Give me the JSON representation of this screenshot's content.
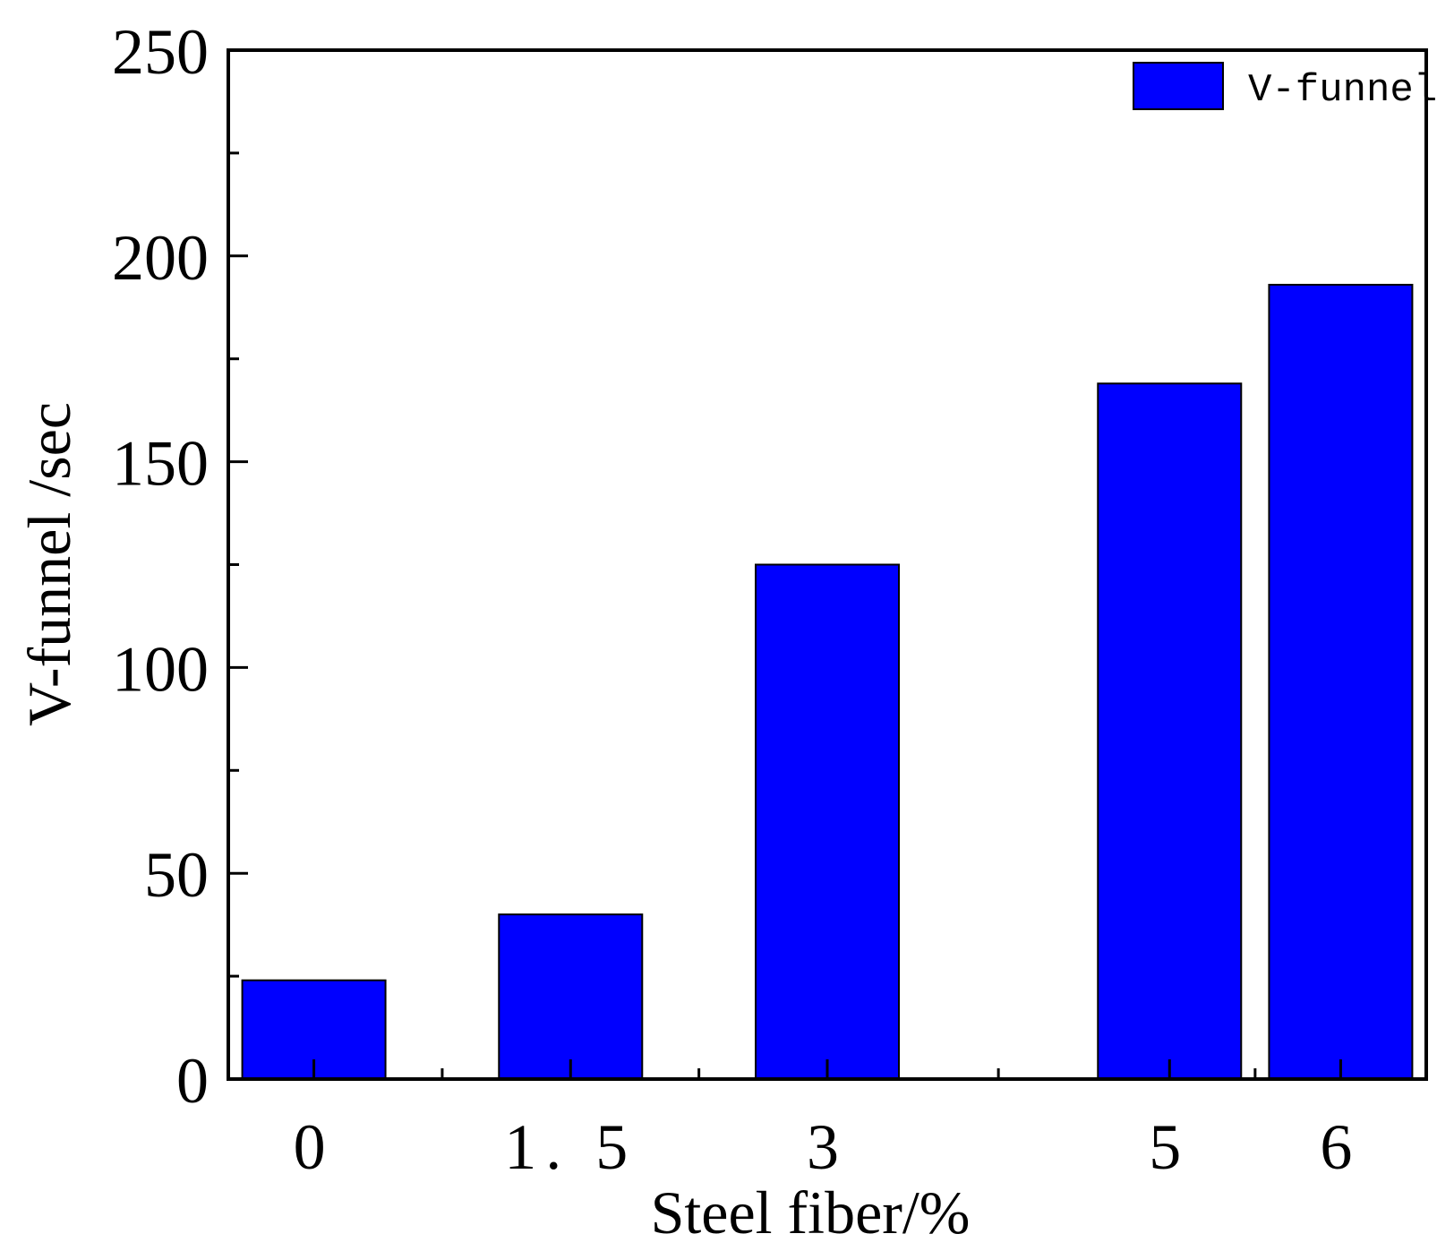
{
  "chart_data": {
    "type": "bar",
    "title": "",
    "xlabel": "Steel fiber/%",
    "ylabel": "V-funnel /sec",
    "x": [
      0,
      1.5,
      3,
      5,
      6
    ],
    "categories": [
      "0",
      "1.5",
      "3",
      "5",
      "6"
    ],
    "category_labels": [
      "0",
      "1. 5",
      "3",
      "5",
      "6"
    ],
    "values": [
      24,
      40,
      125,
      169,
      193
    ],
    "series": [
      {
        "name": "V-funnel",
        "values": [
          24,
          40,
          125,
          169,
          193
        ]
      }
    ],
    "ylim": [
      0,
      250
    ],
    "yticks": [
      0,
      50,
      100,
      150,
      200,
      250
    ],
    "ytick_labels": [
      "0",
      "50",
      "100",
      "150",
      "200",
      "250"
    ],
    "grid": false,
    "legend_position": "top-right",
    "colors": {
      "bar": "#0000ff",
      "axis": "#000000"
    }
  }
}
